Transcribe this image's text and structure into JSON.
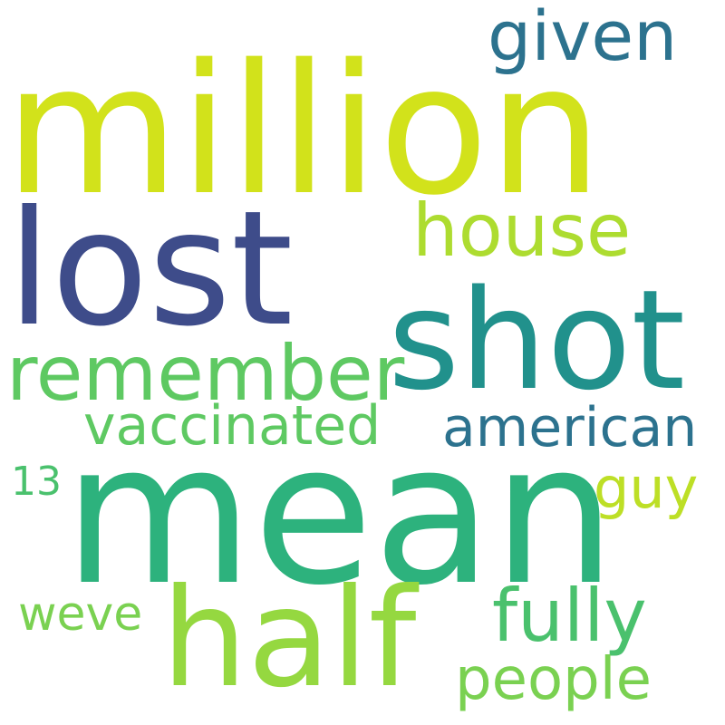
{
  "wordcloud": {
    "words": [
      {
        "text": "million",
        "color": "#d2e21b"
      },
      {
        "text": "given",
        "color": "#2c728e"
      },
      {
        "text": "lost",
        "color": "#3e4c8a"
      },
      {
        "text": "house",
        "color": "#addc30"
      },
      {
        "text": "shot",
        "color": "#21918c"
      },
      {
        "text": "remember",
        "color": "#5ec962"
      },
      {
        "text": "vaccinated",
        "color": "#5ec962"
      },
      {
        "text": "american",
        "color": "#2c728e"
      },
      {
        "text": "13",
        "color": "#4ac16d"
      },
      {
        "text": "mean",
        "color": "#2db27d"
      },
      {
        "text": "guy",
        "color": "#bddf26"
      },
      {
        "text": "weve",
        "color": "#7ad151"
      },
      {
        "text": "half",
        "color": "#95d840"
      },
      {
        "text": "fully",
        "color": "#4ac16d"
      },
      {
        "text": "people",
        "color": "#7ad151"
      }
    ]
  }
}
